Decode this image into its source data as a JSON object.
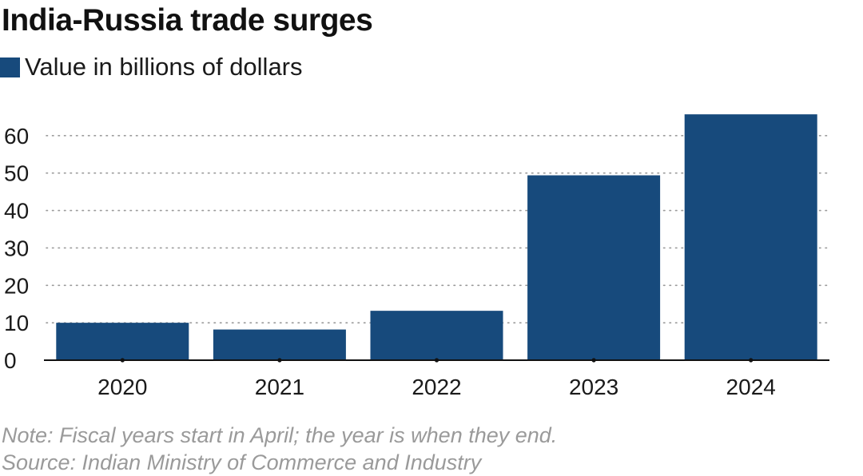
{
  "title": "India-Russia trade surges",
  "chart_data": {
    "type": "bar",
    "categories": [
      "2020",
      "2021",
      "2022",
      "2023",
      "2024"
    ],
    "series": [
      {
        "name": "Value in billions of dollars",
        "values": [
          10.0,
          8.2,
          13.2,
          49.4,
          65.7
        ]
      }
    ],
    "ylim": [
      0,
      70
    ],
    "yticks": [
      "0",
      "10",
      "20",
      "30",
      "40",
      "50",
      "60"
    ],
    "grid": true,
    "legend_position": "top-left",
    "bar_color": "#174a7c"
  },
  "notes": {
    "note": "Note: Fiscal years start in April; the year is when they end.",
    "source": "Source: Indian Ministry of Commerce and Industry"
  }
}
